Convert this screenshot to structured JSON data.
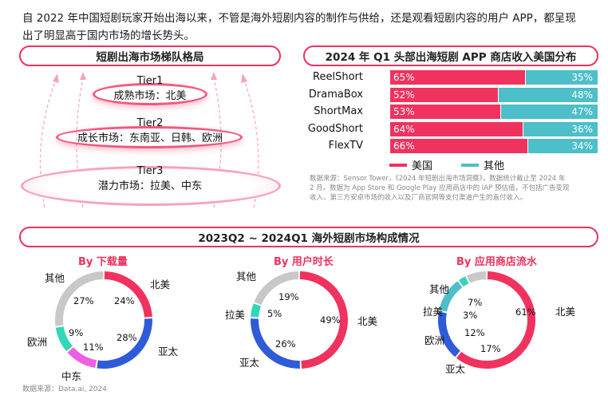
{
  "intro": {
    "line1": "自 2022 年中国短剧玩家开始出海以来，不管是海外短剧内容的制作与供给，还是观看短剧内容的用户 APP，都呈现",
    "line2": "出了明显高于国内市场的增长势头。"
  },
  "tiers": {
    "title": "短剧出海市场梯队格局",
    "items": [
      {
        "tier": "Tier1",
        "desc": "成熟市场：北美"
      },
      {
        "tier": "Tier2",
        "desc": "成长市场：东南亚、日韩、欧洲"
      },
      {
        "tier": "Tier3",
        "desc": "潜力市场：拉美、中东"
      }
    ]
  },
  "bars_title": "2024 年 Q1 头部出海短剧 APP 商店收入美国分布",
  "legend": {
    "us": "美国",
    "other": "其他"
  },
  "bars_source": {
    "l1": "数据来源：Sensor Tower，《2024 年短剧出海市场洞察》，数据统计截止至 2024 年",
    "l2": "2 月。数据为 App Store 和 Google Play 应用商店中的 IAP 预估值，不包括广告变现",
    "l3": "收入、第三方安卓市场的收入以及厂商官网等支付渠道产生的直付收入。"
  },
  "section_title": "2023Q2 ~ 2024Q1 海外短剧市场构成情况",
  "footer_source": "数据来源：Data.ai, 2024",
  "colors": {
    "pink": "#f0325f",
    "blue": "#2f5bd9",
    "grey": "#c8c8c8",
    "magenta": "#ee5fe6",
    "teal": "#33d6b6",
    "cyan": "#4cbfc9"
  },
  "chart_data": [
    {
      "type": "bar",
      "title": "2024 年 Q1 头部出海短剧 APP 商店收入美国分布",
      "categories": [
        "ReelShort",
        "DramaBox",
        "ShortMax",
        "GoodShort",
        "FlexTV"
      ],
      "stacked": true,
      "series": [
        {
          "name": "美国",
          "values": [
            65,
            52,
            53,
            64,
            66
          ],
          "labels": [
            "65%",
            "52%",
            "53%",
            "64%",
            "66%"
          ]
        },
        {
          "name": "其他",
          "values": [
            35,
            48,
            47,
            36,
            34
          ],
          "labels": [
            "35%",
            "48%",
            "47%",
            "36%",
            "34%"
          ]
        }
      ]
    },
    {
      "type": "pie",
      "title": "By 下载量",
      "slices": [
        {
          "name": "北美",
          "value": 24,
          "label": "24%",
          "color": "#f0325f"
        },
        {
          "name": "亚太",
          "value": 28,
          "label": "28%",
          "color": "#2f5bd9"
        },
        {
          "name": "中东",
          "value": 11,
          "label": "11%",
          "color": "#ee5fe6"
        },
        {
          "name": "欧洲",
          "value": 9,
          "label": "9%",
          "color": "#33d6b6"
        },
        {
          "name": "其他",
          "value": 27,
          "label": "27%",
          "color": "#c8c8c8"
        }
      ]
    },
    {
      "type": "pie",
      "title": "By 用户时长",
      "slices": [
        {
          "name": "北美",
          "value": 49,
          "label": "49%",
          "color": "#f0325f"
        },
        {
          "name": "亚太",
          "value": 26,
          "label": "26%",
          "color": "#2f5bd9"
        },
        {
          "name": "拉美",
          "value": 5,
          "label": "5%",
          "color": "#33d6b6"
        },
        {
          "name": "其他",
          "value": 19,
          "label": "19%",
          "color": "#c8c8c8"
        }
      ]
    },
    {
      "type": "pie",
      "title": "By 应用商店流水",
      "slices": [
        {
          "name": "北美",
          "value": 61,
          "label": "61%",
          "color": "#f0325f"
        },
        {
          "name": "亚太",
          "value": 17,
          "label": "17%",
          "color": "#2f5bd9"
        },
        {
          "name": "欧洲",
          "value": 12,
          "label": "12%",
          "color": "#4cbfc9"
        },
        {
          "name": "拉美",
          "value": 3,
          "label": "3%",
          "color": "#33d6b6"
        },
        {
          "name": "其他",
          "value": 7,
          "label": "7%",
          "color": "#c8c8c8"
        }
      ]
    }
  ]
}
